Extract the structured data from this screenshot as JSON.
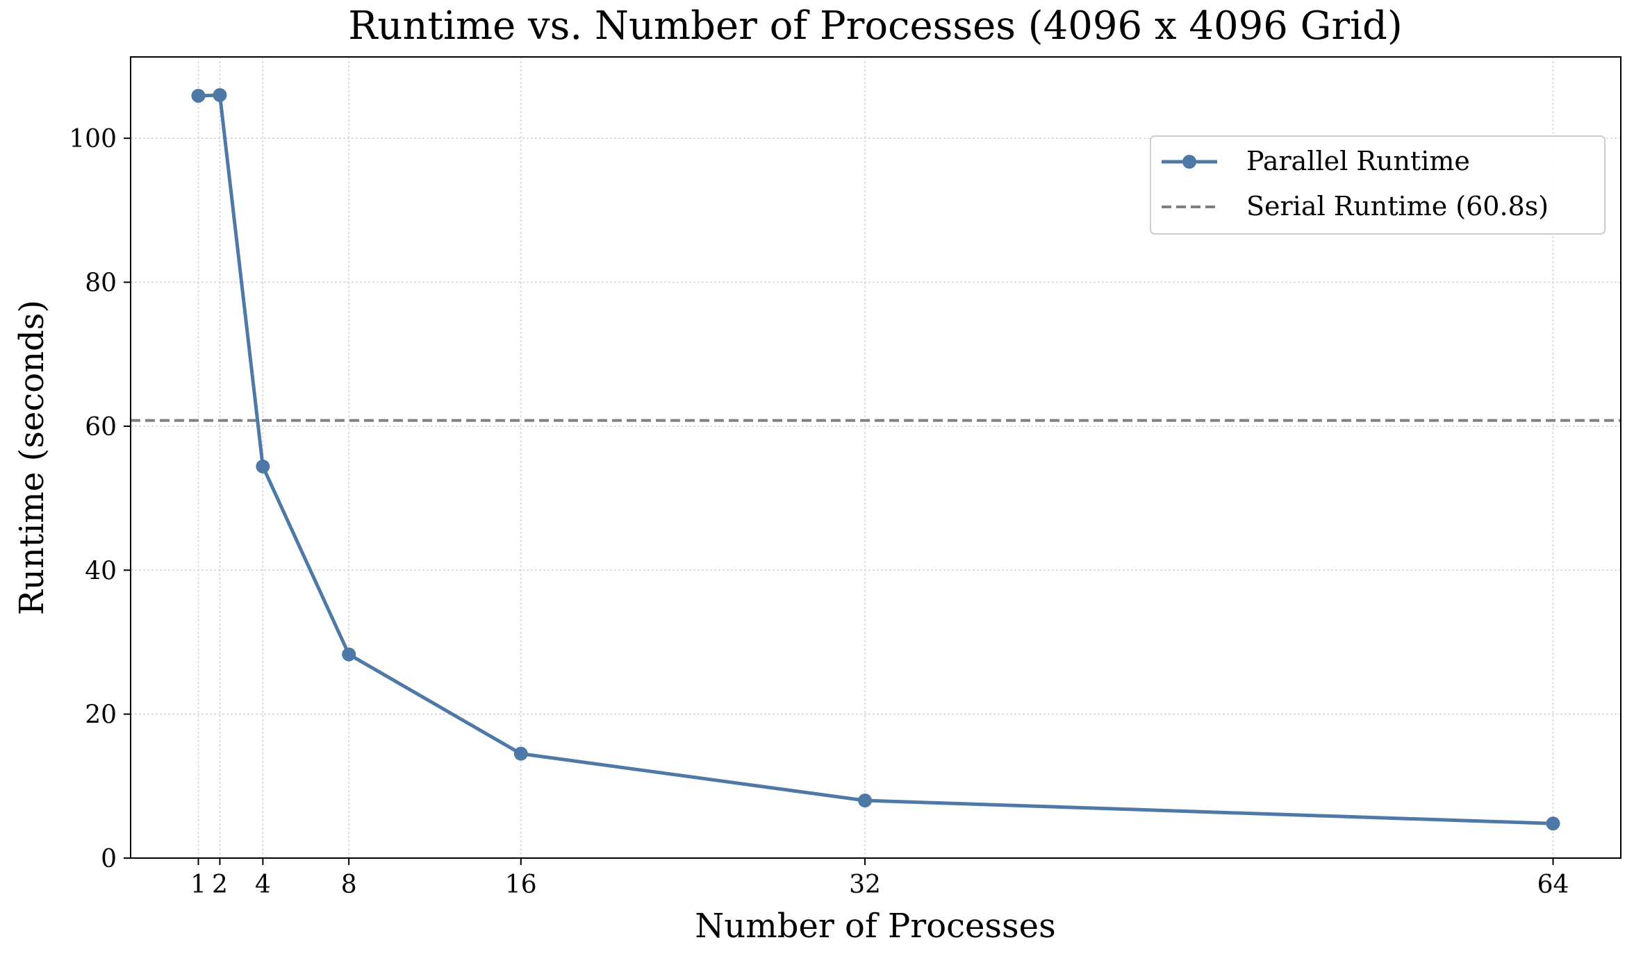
{
  "chart_data": {
    "type": "line",
    "title": "Runtime vs. Number of Processes (4096 x 4096 Grid)",
    "xlabel": "Number of Processes",
    "ylabel": "Runtime (seconds)",
    "x": [
      1,
      2,
      4,
      8,
      16,
      32,
      64
    ],
    "x_tick_labels": [
      "1",
      "2",
      "4",
      "8",
      "16",
      "32",
      "64"
    ],
    "y_ticks": [
      0,
      20,
      40,
      60,
      80,
      100
    ],
    "y_tick_labels": [
      "0",
      "20",
      "40",
      "60",
      "80",
      "100"
    ],
    "xlim": [
      -2.15,
      67.15
    ],
    "ylim": [
      0,
      111.3
    ],
    "grid": true,
    "legend_position": "top-right",
    "series": [
      {
        "name": "Parallel Runtime",
        "values": [
          105.9,
          106.0,
          54.4,
          28.3,
          14.5,
          8.0,
          4.8
        ],
        "color": "#4e79a7",
        "style": "solid",
        "marker": "circle"
      }
    ],
    "reference_lines": [
      {
        "name": "Serial Runtime (60.8s)",
        "value": 60.8,
        "orientation": "horizontal",
        "color": "#808080",
        "style": "dashed"
      }
    ]
  }
}
